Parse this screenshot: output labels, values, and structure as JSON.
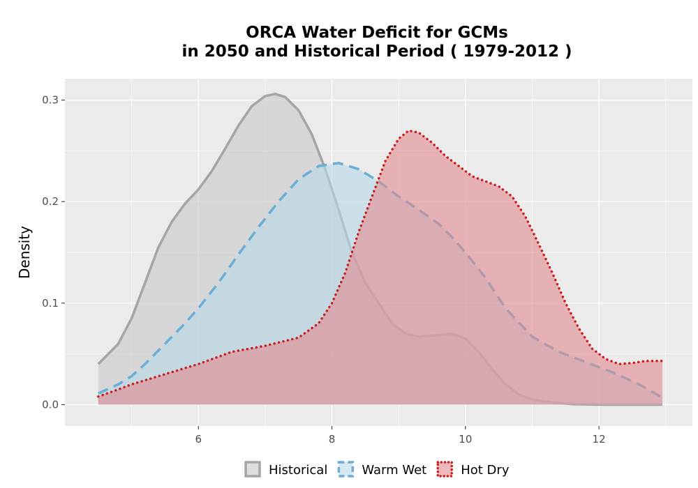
{
  "chart_data": {
    "type": "area",
    "title_line1": "ORCA  Water Deficit for GCMs",
    "title_line2": "in 2050 and Historical Period ( 1979-2012 )",
    "xlabel": "",
    "ylabel": "Density",
    "xlim": [
      4.0,
      13.4
    ],
    "ylim": [
      -0.021,
      0.321
    ],
    "x_ticks": [
      {
        "value": 6,
        "label": "6"
      },
      {
        "value": 8,
        "label": "8"
      },
      {
        "value": 10,
        "label": "10"
      },
      {
        "value": 12,
        "label": "12"
      }
    ],
    "y_ticks": [
      {
        "value": 0.0,
        "label": "0.0"
      },
      {
        "value": 0.1,
        "label": "0.1"
      },
      {
        "value": 0.2,
        "label": "0.2"
      },
      {
        "value": 0.3,
        "label": "0.3"
      }
    ],
    "grid": true,
    "legend_position": "bottom",
    "series": [
      {
        "name": "Historical",
        "fill": "#c8c8c8",
        "stroke": "#a6a6a6",
        "dash": "solid",
        "points": [
          [
            4.5,
            0.04
          ],
          [
            4.8,
            0.06
          ],
          [
            5.0,
            0.085
          ],
          [
            5.2,
            0.12
          ],
          [
            5.4,
            0.155
          ],
          [
            5.6,
            0.18
          ],
          [
            5.8,
            0.198
          ],
          [
            6.0,
            0.212
          ],
          [
            6.2,
            0.23
          ],
          [
            6.4,
            0.252
          ],
          [
            6.6,
            0.275
          ],
          [
            6.8,
            0.294
          ],
          [
            7.0,
            0.304
          ],
          [
            7.15,
            0.306
          ],
          [
            7.3,
            0.303
          ],
          [
            7.5,
            0.29
          ],
          [
            7.7,
            0.266
          ],
          [
            7.9,
            0.232
          ],
          [
            8.1,
            0.192
          ],
          [
            8.3,
            0.15
          ],
          [
            8.5,
            0.12
          ],
          [
            8.7,
            0.1
          ],
          [
            8.9,
            0.08
          ],
          [
            9.1,
            0.07
          ],
          [
            9.3,
            0.067
          ],
          [
            9.5,
            0.068
          ],
          [
            9.8,
            0.07
          ],
          [
            10.0,
            0.065
          ],
          [
            10.2,
            0.052
          ],
          [
            10.4,
            0.035
          ],
          [
            10.6,
            0.02
          ],
          [
            10.8,
            0.01
          ],
          [
            11.0,
            0.005
          ],
          [
            11.3,
            0.002
          ],
          [
            11.6,
            0.0005
          ],
          [
            12.0,
            0.0
          ],
          [
            12.5,
            0.0
          ],
          [
            12.95,
            0.0
          ]
        ]
      },
      {
        "name": "Warm Wet",
        "fill": "#b8d8ea",
        "stroke": "#6baed6",
        "dash": "dashed",
        "points": [
          [
            4.5,
            0.011
          ],
          [
            4.8,
            0.02
          ],
          [
            5.0,
            0.028
          ],
          [
            5.2,
            0.04
          ],
          [
            5.5,
            0.06
          ],
          [
            5.8,
            0.08
          ],
          [
            6.0,
            0.095
          ],
          [
            6.3,
            0.12
          ],
          [
            6.6,
            0.148
          ],
          [
            6.9,
            0.175
          ],
          [
            7.2,
            0.2
          ],
          [
            7.5,
            0.222
          ],
          [
            7.8,
            0.235
          ],
          [
            8.1,
            0.238
          ],
          [
            8.4,
            0.232
          ],
          [
            8.7,
            0.22
          ],
          [
            9.0,
            0.205
          ],
          [
            9.3,
            0.192
          ],
          [
            9.6,
            0.178
          ],
          [
            9.8,
            0.165
          ],
          [
            10.0,
            0.15
          ],
          [
            10.3,
            0.125
          ],
          [
            10.6,
            0.095
          ],
          [
            11.0,
            0.067
          ],
          [
            11.4,
            0.052
          ],
          [
            11.8,
            0.042
          ],
          [
            12.2,
            0.032
          ],
          [
            12.6,
            0.02
          ],
          [
            12.95,
            0.007
          ]
        ]
      },
      {
        "name": "Hot Dry",
        "fill": "#e38a8f",
        "stroke": "#cc1f1f",
        "dash": "dotted",
        "points": [
          [
            4.5,
            0.008
          ],
          [
            4.8,
            0.015
          ],
          [
            5.0,
            0.02
          ],
          [
            5.5,
            0.03
          ],
          [
            6.0,
            0.04
          ],
          [
            6.5,
            0.052
          ],
          [
            7.0,
            0.058
          ],
          [
            7.5,
            0.066
          ],
          [
            7.8,
            0.08
          ],
          [
            8.0,
            0.1
          ],
          [
            8.2,
            0.13
          ],
          [
            8.4,
            0.17
          ],
          [
            8.6,
            0.205
          ],
          [
            8.8,
            0.24
          ],
          [
            9.0,
            0.262
          ],
          [
            9.15,
            0.27
          ],
          [
            9.3,
            0.268
          ],
          [
            9.5,
            0.258
          ],
          [
            9.7,
            0.245
          ],
          [
            9.9,
            0.235
          ],
          [
            10.1,
            0.225
          ],
          [
            10.3,
            0.22
          ],
          [
            10.5,
            0.215
          ],
          [
            10.7,
            0.205
          ],
          [
            10.9,
            0.185
          ],
          [
            11.1,
            0.158
          ],
          [
            11.3,
            0.13
          ],
          [
            11.5,
            0.1
          ],
          [
            11.7,
            0.075
          ],
          [
            11.9,
            0.055
          ],
          [
            12.1,
            0.045
          ],
          [
            12.3,
            0.04
          ],
          [
            12.5,
            0.041
          ],
          [
            12.7,
            0.043
          ],
          [
            12.95,
            0.043
          ]
        ]
      }
    ]
  }
}
